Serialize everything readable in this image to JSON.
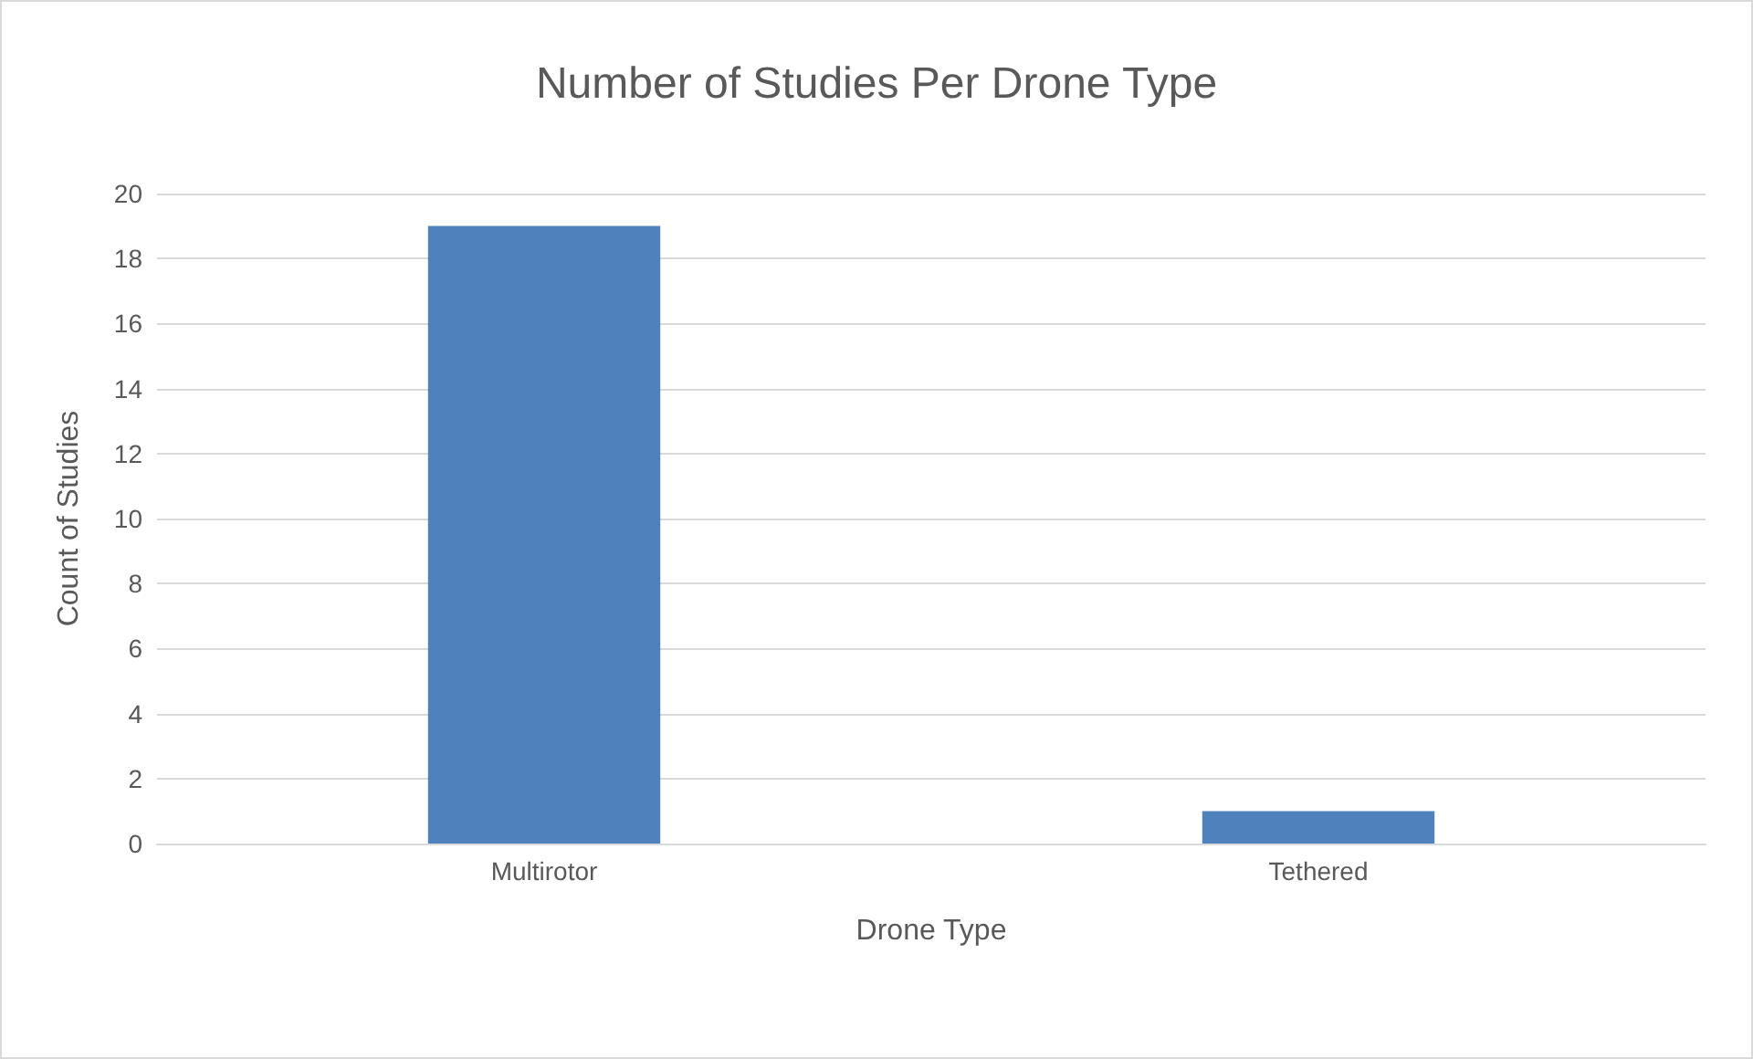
{
  "chart_data": {
    "type": "bar",
    "title": "Number of Studies Per Drone Type",
    "xlabel": "Drone Type",
    "ylabel": "Count of Studies",
    "categories": [
      "Multirotor",
      "Tethered"
    ],
    "values": [
      19,
      1
    ],
    "color": "#4f81bd",
    "ylim": [
      0,
      20
    ],
    "yticks": [
      0,
      2,
      4,
      6,
      8,
      10,
      12,
      14,
      16,
      18,
      20
    ],
    "grid": "y"
  }
}
